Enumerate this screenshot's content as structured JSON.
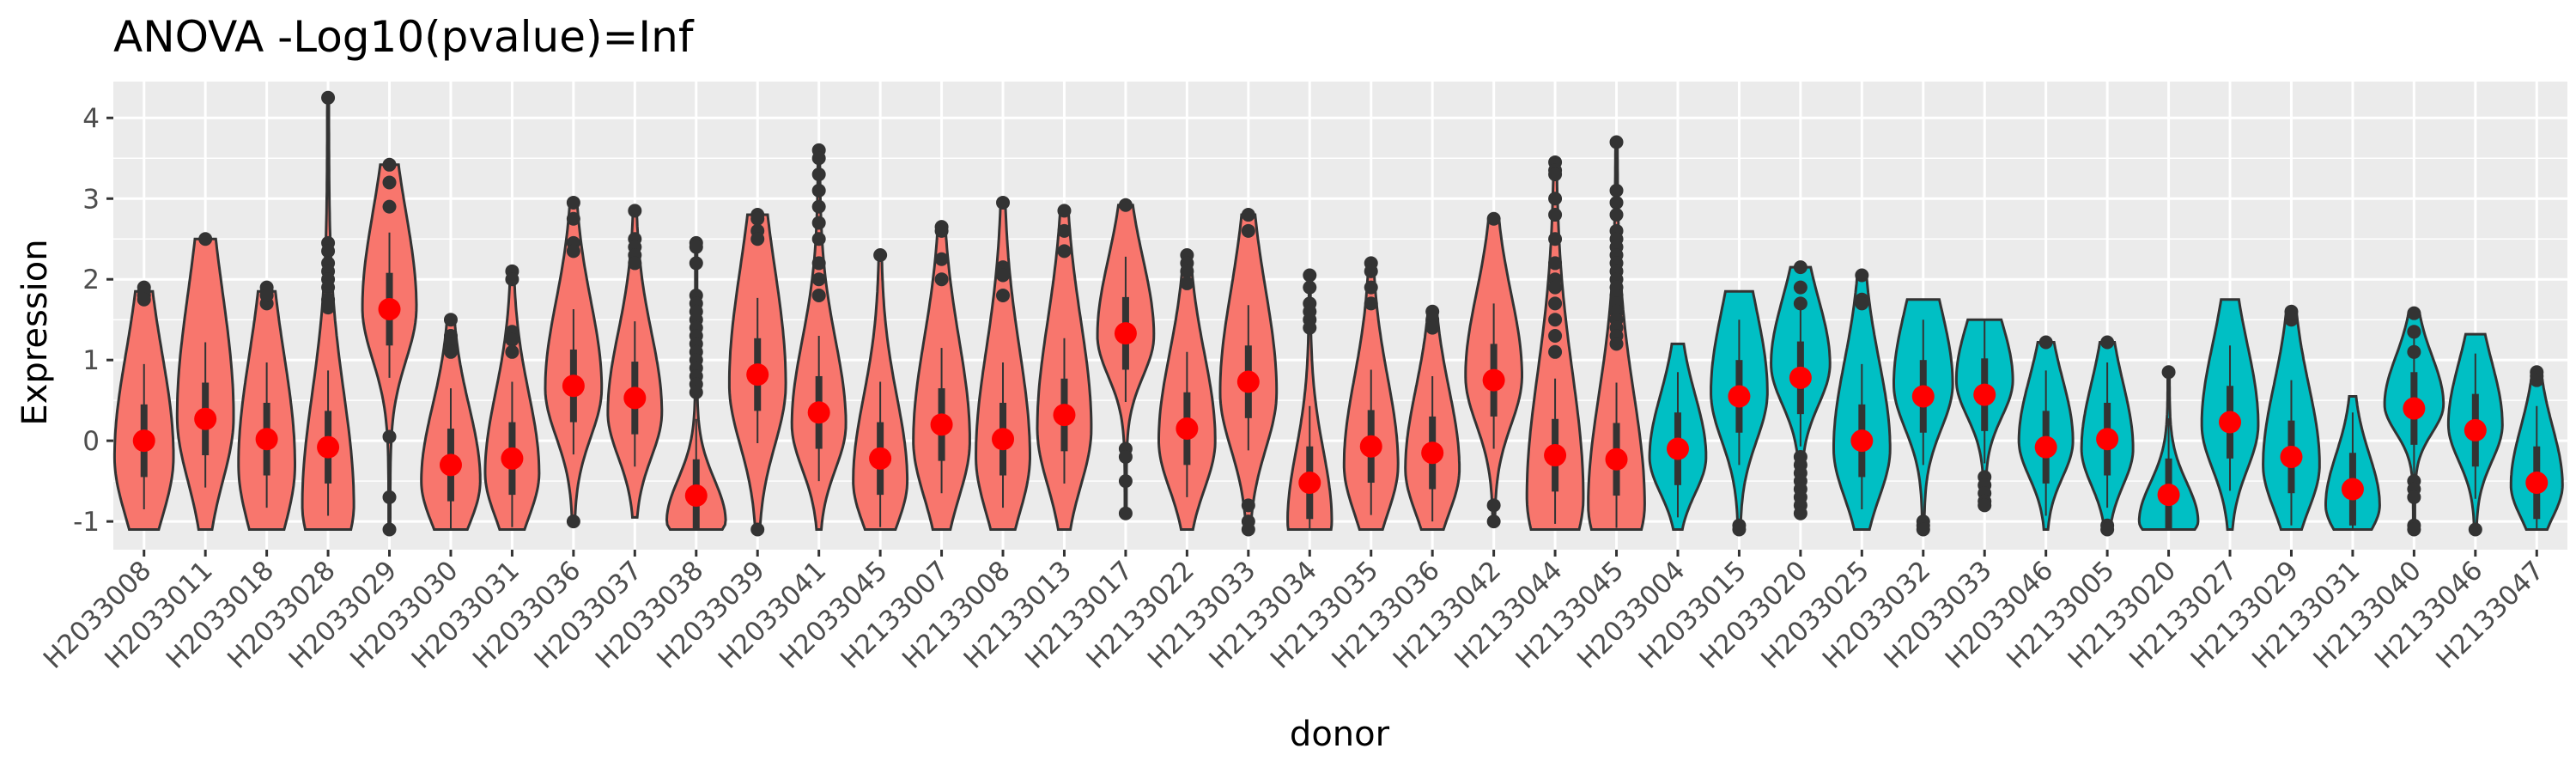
{
  "chart_data": {
    "type": "violin",
    "title": "ANOVA -Log10(pvalue)=Inf",
    "xlabel": "donor",
    "ylabel": "Expression",
    "ylim": [
      -1.35,
      4.45
    ],
    "y_ticks": [
      -1,
      0,
      1,
      2,
      3,
      4
    ],
    "grid": true,
    "legend": "none",
    "colors": {
      "group1": "#F8766D",
      "group2": "#00BFC4",
      "mean_point": "#FF0000",
      "outline": "#333333",
      "panel": "#EBEBEB",
      "grid": "#FFFFFF"
    },
    "categories": [
      "H2033008",
      "H2033011",
      "H2033018",
      "H2033028",
      "H2033029",
      "H2033030",
      "H2033031",
      "H2033036",
      "H2033037",
      "H2033038",
      "H2033039",
      "H2033041",
      "H2033045",
      "H2133007",
      "H2133008",
      "H2133013",
      "H2133017",
      "H2133022",
      "H2133033",
      "H2133034",
      "H2133035",
      "H2133036",
      "H2133042",
      "H2133044",
      "H2133045",
      "H2033004",
      "H2033015",
      "H2033020",
      "H2033025",
      "H2033032",
      "H2033033",
      "H2033046",
      "H2133005",
      "H2133020",
      "H2133027",
      "H2133029",
      "H2133031",
      "H2133040",
      "H2133046",
      "H2133047"
    ],
    "groups": [
      1,
      1,
      1,
      1,
      1,
      1,
      1,
      1,
      1,
      1,
      1,
      1,
      1,
      1,
      1,
      1,
      1,
      1,
      1,
      1,
      1,
      1,
      1,
      1,
      1,
      2,
      2,
      2,
      2,
      2,
      2,
      2,
      2,
      2,
      2,
      2,
      2,
      2,
      2,
      2
    ],
    "means": [
      0.0,
      0.27,
      0.02,
      -0.08,
      1.63,
      -0.3,
      -0.22,
      0.68,
      0.53,
      -0.68,
      0.82,
      0.35,
      -0.22,
      0.2,
      0.02,
      0.32,
      1.33,
      0.15,
      0.73,
      -0.52,
      -0.07,
      -0.15,
      0.75,
      -0.18,
      -0.23,
      -0.1,
      0.55,
      0.78,
      0.0,
      0.55,
      0.57,
      -0.08,
      0.02,
      -0.67,
      0.23,
      -0.2,
      -0.6,
      0.4,
      0.13,
      -0.52
    ],
    "violins": [
      {
        "min": -1.1,
        "max": 1.85,
        "mode": -0.2,
        "spread": 0.75,
        "upper_skew": 0.7,
        "maxw": 0.48
      },
      {
        "min": -1.1,
        "max": 2.5,
        "mode": 0.3,
        "spread": 0.8,
        "upper_skew": 0.9,
        "maxw": 0.46
      },
      {
        "min": -1.1,
        "max": 1.85,
        "mode": -0.3,
        "spread": 0.8,
        "upper_skew": 0.7,
        "maxw": 0.46
      },
      {
        "min": -1.1,
        "max": 4.25,
        "mode": -0.8,
        "spread": 0.6,
        "upper_skew": 1.3,
        "maxw": 0.42
      },
      {
        "min": -1.1,
        "max": 3.42,
        "mode": 1.65,
        "spread": 0.65,
        "upper_skew": 0.8,
        "maxw": 0.44
      },
      {
        "min": -1.1,
        "max": 1.45,
        "mode": -0.5,
        "spread": 0.55,
        "upper_skew": 0.7,
        "maxw": 0.48
      },
      {
        "min": -1.1,
        "max": 2.1,
        "mode": -0.4,
        "spread": 0.55,
        "upper_skew": 0.8,
        "maxw": 0.44
      },
      {
        "min": -1.0,
        "max": 2.95,
        "mode": 0.65,
        "spread": 0.6,
        "upper_skew": 0.8,
        "maxw": 0.46
      },
      {
        "min": -0.95,
        "max": 2.85,
        "mode": 0.35,
        "spread": 0.55,
        "upper_skew": 0.8,
        "maxw": 0.44
      },
      {
        "min": -1.1,
        "max": 2.45,
        "mode": -1.0,
        "spread": 0.2,
        "upper_skew": 1.6,
        "maxw": 0.48
      },
      {
        "min": -1.1,
        "max": 2.8,
        "mode": 0.7,
        "spread": 0.75,
        "upper_skew": 0.9,
        "maxw": 0.46
      },
      {
        "min": -1.1,
        "max": 3.6,
        "mode": 0.2,
        "spread": 0.55,
        "upper_skew": 0.9,
        "maxw": 0.44
      },
      {
        "min": -1.1,
        "max": 2.3,
        "mode": -0.5,
        "spread": 0.55,
        "upper_skew": 0.9,
        "maxw": 0.44
      },
      {
        "min": -1.1,
        "max": 2.65,
        "mode": 0.0,
        "spread": 0.7,
        "upper_skew": 0.8,
        "maxw": 0.46
      },
      {
        "min": -1.1,
        "max": 2.95,
        "mode": -0.2,
        "spread": 0.7,
        "upper_skew": 0.9,
        "maxw": 0.44
      },
      {
        "min": -1.1,
        "max": 2.85,
        "mode": 0.15,
        "spread": 0.7,
        "upper_skew": 0.9,
        "maxw": 0.44
      },
      {
        "min": -0.9,
        "max": 2.92,
        "mode": 1.3,
        "spread": 0.5,
        "upper_skew": 0.9,
        "maxw": 0.46
      },
      {
        "min": -1.1,
        "max": 2.3,
        "mode": 0.0,
        "spread": 0.6,
        "upper_skew": 0.8,
        "maxw": 0.46
      },
      {
        "min": -1.1,
        "max": 2.8,
        "mode": 0.6,
        "spread": 0.7,
        "upper_skew": 0.8,
        "maxw": 0.46
      },
      {
        "min": -1.1,
        "max": 2.05,
        "mode": -1.0,
        "spread": 0.4,
        "upper_skew": 1.2,
        "maxw": 0.36
      },
      {
        "min": -1.1,
        "max": 2.2,
        "mode": -0.3,
        "spread": 0.6,
        "upper_skew": 0.8,
        "maxw": 0.44
      },
      {
        "min": -1.1,
        "max": 1.6,
        "mode": -0.35,
        "spread": 0.55,
        "upper_skew": 0.8,
        "maxw": 0.44
      },
      {
        "min": -1.05,
        "max": 2.75,
        "mode": 0.8,
        "spread": 0.6,
        "upper_skew": 0.7,
        "maxw": 0.46
      },
      {
        "min": -1.1,
        "max": 3.45,
        "mode": -0.7,
        "spread": 0.7,
        "upper_skew": 1.2,
        "maxw": 0.46
      },
      {
        "min": -1.1,
        "max": 3.7,
        "mode": -0.8,
        "spread": 0.6,
        "upper_skew": 1.3,
        "maxw": 0.46
      },
      {
        "min": -1.1,
        "max": 1.2,
        "mode": -0.2,
        "spread": 0.45,
        "upper_skew": 0.7,
        "maxw": 0.46
      },
      {
        "min": -1.1,
        "max": 1.85,
        "mode": 0.6,
        "spread": 0.6,
        "upper_skew": 0.7,
        "maxw": 0.46
      },
      {
        "min": -0.95,
        "max": 2.15,
        "mode": 0.95,
        "spread": 0.5,
        "upper_skew": 0.6,
        "maxw": 0.48
      },
      {
        "min": -1.1,
        "max": 2.05,
        "mode": -0.1,
        "spread": 0.6,
        "upper_skew": 0.8,
        "maxw": 0.46
      },
      {
        "min": -1.1,
        "max": 1.75,
        "mode": 0.7,
        "spread": 0.55,
        "upper_skew": 0.7,
        "maxw": 0.48
      },
      {
        "min": -0.8,
        "max": 1.5,
        "mode": 0.75,
        "spread": 0.45,
        "upper_skew": 0.6,
        "maxw": 0.46
      },
      {
        "min": -1.1,
        "max": 1.22,
        "mode": 0.0,
        "spread": 0.45,
        "upper_skew": 0.7,
        "maxw": 0.44
      },
      {
        "min": -1.1,
        "max": 1.22,
        "mode": -0.1,
        "spread": 0.45,
        "upper_skew": 0.8,
        "maxw": 0.42
      },
      {
        "min": -1.1,
        "max": 0.85,
        "mode": -1.0,
        "spread": 0.2,
        "upper_skew": 1.4,
        "maxw": 0.48
      },
      {
        "min": -1.1,
        "max": 1.75,
        "mode": 0.2,
        "spread": 0.55,
        "upper_skew": 0.8,
        "maxw": 0.46
      },
      {
        "min": -1.1,
        "max": 1.6,
        "mode": -0.3,
        "spread": 0.55,
        "upper_skew": 0.8,
        "maxw": 0.46
      },
      {
        "min": -1.1,
        "max": 0.55,
        "mode": -0.8,
        "spread": 0.35,
        "upper_skew": 0.8,
        "maxw": 0.44
      },
      {
        "min": -1.1,
        "max": 1.58,
        "mode": 0.45,
        "spread": 0.35,
        "upper_skew": 0.7,
        "maxw": 0.48
      },
      {
        "min": -1.1,
        "max": 1.32,
        "mode": 0.2,
        "spread": 0.45,
        "upper_skew": 0.7,
        "maxw": 0.44
      },
      {
        "min": -1.1,
        "max": 0.85,
        "mode": -0.55,
        "spread": 0.4,
        "upper_skew": 0.8,
        "maxw": 0.42
      }
    ],
    "outliers": [
      [
        1.8,
        1.9,
        1.85,
        1.75
      ],
      [
        2.5
      ],
      [
        1.9,
        1.85,
        1.7,
        1.8
      ],
      [
        4.25,
        2.45,
        2.35,
        2.2,
        2.1,
        2.0,
        1.9,
        1.75,
        1.65
      ],
      [
        3.42,
        3.2,
        2.9,
        -0.7,
        -1.1,
        0.05
      ],
      [
        1.5,
        1.3,
        1.2,
        1.1
      ],
      [
        2.1,
        2.0,
        1.35,
        1.25,
        1.1
      ],
      [
        2.95,
        2.75,
        2.45,
        2.35,
        -1.0
      ],
      [
        2.85,
        2.5,
        2.4,
        2.3,
        2.2
      ],
      [
        2.45,
        2.4,
        2.2,
        1.8,
        1.7,
        1.6,
        1.5,
        1.4,
        1.3,
        1.2,
        1.1,
        1.0,
        0.9,
        0.8,
        0.7,
        0.6
      ],
      [
        2.8,
        2.75,
        2.6,
        2.5,
        -1.1
      ],
      [
        3.6,
        3.5,
        3.3,
        3.1,
        2.9,
        2.7,
        2.5,
        2.2,
        2.0,
        1.8
      ],
      [
        2.3
      ],
      [
        2.65,
        2.6,
        2.25,
        2.0
      ],
      [
        2.95,
        2.15,
        2.05,
        1.8
      ],
      [
        2.85,
        2.6,
        2.35
      ],
      [
        2.92,
        -0.1,
        -0.2,
        -0.5,
        -0.9
      ],
      [
        2.3,
        2.2,
        2.1,
        1.95
      ],
      [
        2.8,
        2.6,
        -0.8,
        -1.0,
        -1.1
      ],
      [
        2.05,
        1.9,
        1.7,
        1.6,
        1.5,
        1.4
      ],
      [
        2.2,
        2.1,
        1.9,
        1.7
      ],
      [
        1.6,
        1.5,
        1.4
      ],
      [
        2.75,
        -0.8,
        -1.0
      ],
      [
        3.45,
        3.35,
        3.3,
        3.0,
        2.8,
        2.5,
        2.2,
        2.0,
        1.9,
        1.7,
        1.5,
        1.3,
        1.1
      ],
      [
        3.7,
        3.1,
        2.95,
        2.8,
        2.6,
        2.5,
        2.4,
        2.3,
        2.2,
        2.1,
        2.0,
        1.9,
        1.8,
        1.7,
        1.6,
        1.5,
        1.4,
        1.3,
        1.2
      ],
      [],
      [
        -1.05,
        -1.1
      ],
      [
        2.15,
        1.9,
        1.7,
        -0.2,
        -0.3,
        -0.4,
        -0.5,
        -0.6,
        -0.7,
        -0.8,
        -0.9
      ],
      [
        2.05,
        1.75,
        1.7
      ],
      [
        -1.0,
        -1.05,
        -1.1
      ],
      [
        -0.45,
        -0.55,
        -0.65,
        -0.75,
        -0.8
      ],
      [
        1.22
      ],
      [
        1.22,
        -1.05,
        -1.1
      ],
      [
        0.85
      ],
      [],
      [
        1.6,
        1.5
      ],
      [],
      [
        1.58,
        1.35,
        1.1,
        -0.5,
        -0.6,
        -0.7,
        -1.05,
        -1.1
      ],
      [
        -1.1
      ],
      [
        0.85,
        0.8,
        0.75
      ]
    ]
  }
}
